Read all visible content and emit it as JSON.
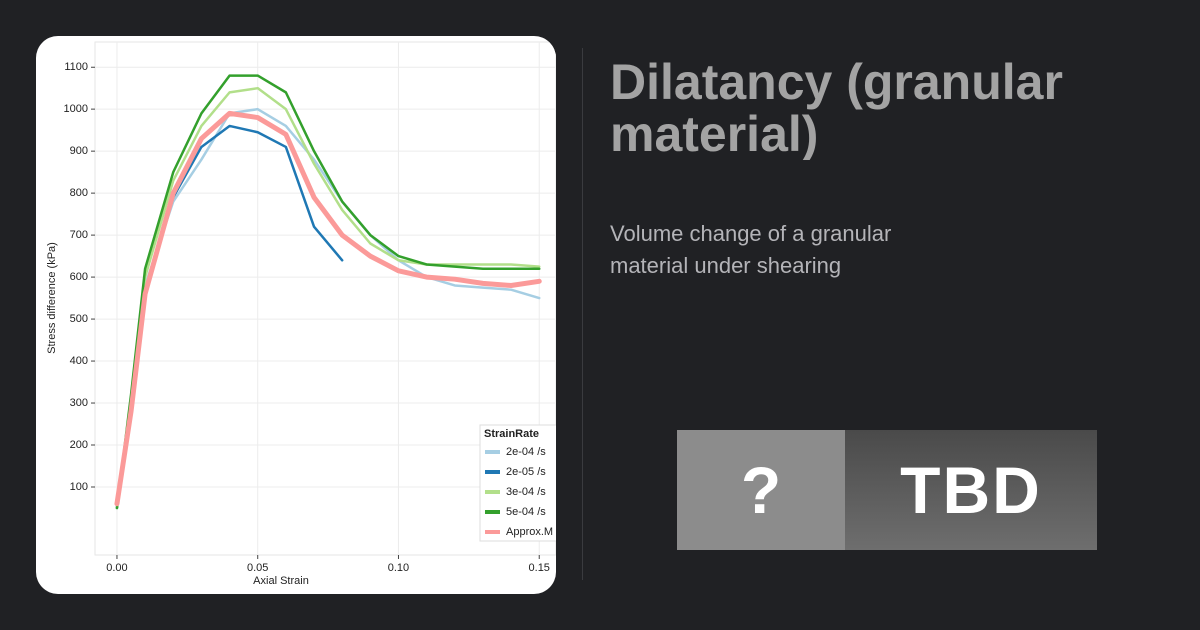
{
  "header": {
    "title": "Dilatancy (granular material)",
    "subtitle": "Volume change of a granular material under shearing"
  },
  "badge": {
    "mark": "?",
    "status": "TBD"
  },
  "chart_data": {
    "type": "line",
    "x_label": "Axial Strain",
    "y_label": "Stress difference (kPa)",
    "x": [
      0,
      0.005,
      0.01,
      0.02,
      0.03,
      0.04,
      0.05,
      0.06,
      0.07,
      0.08,
      0.09,
      0.1,
      0.11,
      0.12,
      0.13,
      0.14,
      0.15
    ],
    "series": [
      {
        "name": "2e-04 /s",
        "color": "#a6cee3",
        "values": [
          50,
          300,
          580,
          780,
          880,
          990,
          1000,
          960,
          880,
          780,
          700,
          640,
          600,
          580,
          575,
          570,
          550
        ]
      },
      {
        "name": "2e-05 /s",
        "color": "#1f78b4",
        "values": [
          50,
          300,
          570,
          790,
          910,
          960,
          945,
          910,
          720,
          640,
          null,
          null,
          null,
          null,
          null,
          null,
          null
        ]
      },
      {
        "name": "3e-04 /s",
        "color": "#b2df8a",
        "values": [
          50,
          310,
          600,
          830,
          960,
          1040,
          1050,
          1000,
          870,
          760,
          680,
          640,
          630,
          630,
          630,
          630,
          625
        ]
      },
      {
        "name": "5e-04 /s",
        "color": "#33a02c",
        "values": [
          50,
          320,
          620,
          850,
          990,
          1080,
          1080,
          1040,
          900,
          780,
          700,
          650,
          630,
          625,
          620,
          620,
          620
        ]
      },
      {
        "name": "Approx.M",
        "color": "#fb9a99",
        "values": [
          60,
          280,
          560,
          800,
          930,
          990,
          980,
          940,
          790,
          700,
          650,
          615,
          600,
          595,
          585,
          580,
          590
        ]
      }
    ],
    "legend_title": "StrainRate",
    "legend": "bottom-right",
    "grid": true,
    "xlim": [
      -0.0078,
      0.1556
    ],
    "xticks": [
      {
        "value": 0,
        "label": "0.00"
      },
      0.05,
      {
        "value": 0.1,
        "label": "0.10"
      },
      0.15
    ],
    "ylim": [
      -62,
      1160
    ],
    "yticks": [
      100,
      200,
      300,
      400,
      500,
      600,
      700,
      800,
      900,
      1000,
      1100
    ]
  }
}
